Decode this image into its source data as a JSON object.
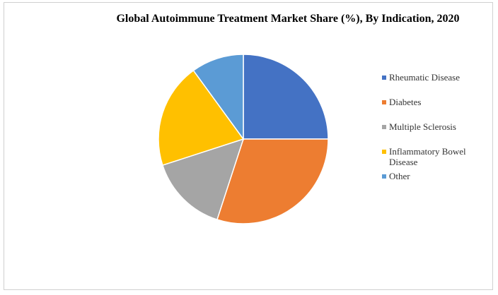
{
  "chart_data": {
    "type": "pie",
    "title": "Global Autoimmune Treatment Market Share (%), By Indication, 2020",
    "categories": [
      "Rheumatic Disease",
      "Diabetes",
      "Multiple Sclerosis",
      "Inflammatory Bowel Disease",
      "Other"
    ],
    "values": [
      25,
      30,
      15,
      20,
      10
    ],
    "colors": [
      "#4472c4",
      "#ed7d31",
      "#a5a5a5",
      "#ffc000",
      "#5b9bd5"
    ],
    "legend": "right"
  }
}
